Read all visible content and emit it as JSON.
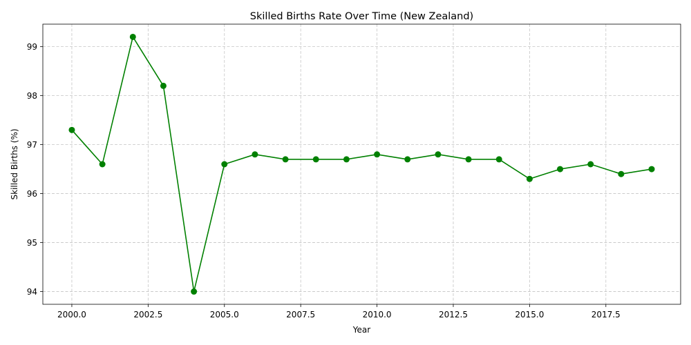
{
  "chart_data": {
    "type": "line",
    "title": "Skilled Births Rate Over Time (New Zealand)",
    "xlabel": "Year",
    "ylabel": "Skilled Births (%)",
    "xlim": [
      1999.05,
      2019.95
    ],
    "ylim": [
      93.74,
      99.46
    ],
    "x_ticks": [
      2000.0,
      2002.5,
      2005.0,
      2007.5,
      2010.0,
      2012.5,
      2015.0,
      2017.5
    ],
    "x_tick_labels": [
      "2000.0",
      "2002.5",
      "2005.0",
      "2007.5",
      "2010.0",
      "2012.5",
      "2015.0",
      "2017.5"
    ],
    "y_ticks": [
      94,
      95,
      96,
      97,
      98,
      99
    ],
    "y_tick_labels": [
      "94",
      "95",
      "96",
      "97",
      "98",
      "99"
    ],
    "grid": true,
    "color": "#008000",
    "marker": "circle",
    "x": [
      2000,
      2001,
      2002,
      2003,
      2004,
      2005,
      2006,
      2007,
      2008,
      2009,
      2010,
      2011,
      2012,
      2013,
      2014,
      2015,
      2016,
      2017,
      2018,
      2019
    ],
    "values": [
      97.3,
      96.6,
      99.2,
      98.2,
      94.0,
      96.6,
      96.8,
      96.7,
      96.7,
      96.7,
      96.8,
      96.7,
      96.8,
      96.7,
      96.7,
      96.3,
      96.5,
      96.6,
      96.4,
      96.5
    ]
  }
}
